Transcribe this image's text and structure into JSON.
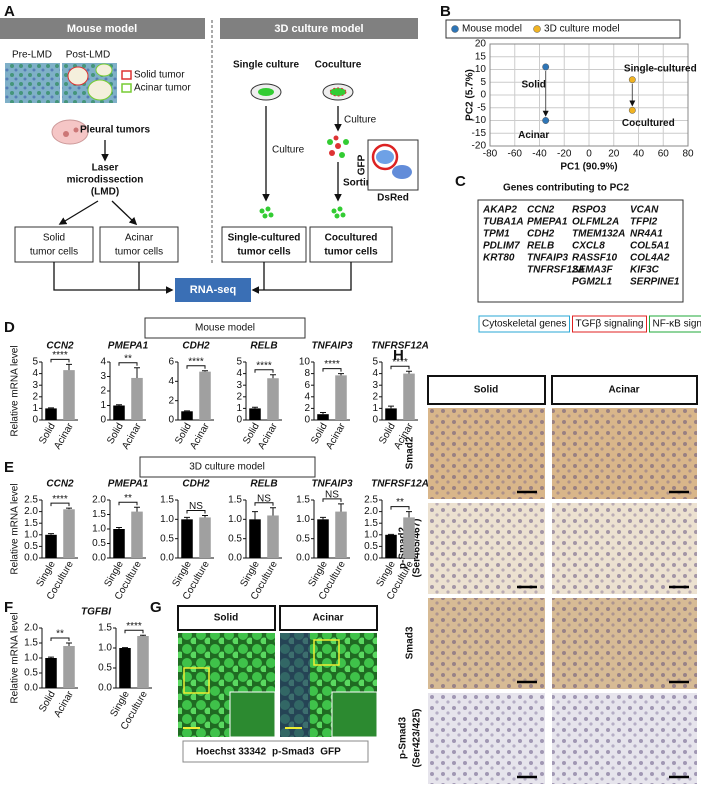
{
  "panel_labels": [
    "A",
    "B",
    "C",
    "D",
    "E",
    "F",
    "G",
    "H"
  ],
  "panel_a": {
    "mouse_header": "Mouse model",
    "culture_header": "3D culture model",
    "pre_lmd": "Pre-LMD",
    "post_lmd": "Post-LMD",
    "legend": [
      "Solid tumor",
      "Acinar tumor"
    ],
    "pleural": "Pleural tumors",
    "lmd": [
      "Laser",
      "microdissection",
      "(LMD)"
    ],
    "solid_cells": [
      "Solid",
      "tumor cells"
    ],
    "acinar_cells": [
      "Acinar",
      "tumor cells"
    ],
    "single_culture": "Single culture",
    "coculture": "Coculture",
    "culture_steps": [
      "Culture",
      "Culture"
    ],
    "sorting": "Sorting",
    "gfp": "GFP",
    "dsred": "DsRed",
    "single_cells": [
      "Single-cultured",
      "tumor cells"
    ],
    "cocultured_cells": [
      "Cocultured",
      "tumor cells"
    ],
    "rna_seq": "RNA-seq"
  },
  "panel_c": {
    "title": "Genes contributing to PC2",
    "columns": [
      [
        {
          "gene": "AKAP2",
          "color": "#2aa7d6"
        },
        {
          "gene": "TUBA1A",
          "color": "#2aa7d6"
        },
        {
          "gene": "TPM1",
          "color": "#2aa7d6"
        },
        {
          "gene": "PDLIM7",
          "color": "#2aa7d6"
        },
        {
          "gene": "KRT80",
          "color": "#2aa7d6"
        }
      ],
      [
        {
          "gene": "CCN2",
          "color": "#e02020"
        },
        {
          "gene": "PMEPA1",
          "color": "#e02020"
        },
        {
          "gene": "CDH2",
          "color": "#e02020"
        },
        {
          "gene": "RELB",
          "color": "#1fa83a"
        },
        {
          "gene": "TNFAIP3",
          "color": "#1fa83a"
        },
        {
          "gene": "TNFRSF12A",
          "color": "#1fa83a"
        }
      ],
      [
        {
          "gene": "RSPO3",
          "color": "#222222"
        },
        {
          "gene": "OLFML2A",
          "color": "#222222"
        },
        {
          "gene": "TMEM132A",
          "color": "#222222"
        },
        {
          "gene": "CXCL8",
          "color": "#222222"
        },
        {
          "gene": "RASSF10",
          "color": "#222222"
        },
        {
          "gene": "SEMA3F",
          "color": "#222222"
        },
        {
          "gene": "PGM2L1",
          "color": "#222222"
        }
      ],
      [
        {
          "gene": "VCAN",
          "color": "#222222"
        },
        {
          "gene": "TFPI2",
          "color": "#222222"
        },
        {
          "gene": "NR4A1",
          "color": "#222222"
        },
        {
          "gene": "COL5A1",
          "color": "#222222"
        },
        {
          "gene": "COL4A2",
          "color": "#222222"
        },
        {
          "gene": "KIF3C",
          "color": "#222222"
        },
        {
          "gene": "SERPINE1",
          "color": "#222222"
        }
      ]
    ],
    "legend": [
      {
        "text": "Cytoskeletal genes",
        "color": "#2aa7d6"
      },
      {
        "text": "TGFβ signaling",
        "color": "#e02020"
      },
      {
        "text": "NF-κB signaling",
        "color": "#1fa83a"
      }
    ]
  },
  "panel_d": {
    "header": "Mouse model"
  },
  "panel_e": {
    "header": "3D culture model"
  },
  "panel_g": {
    "headers": [
      "Solid",
      "Acinar"
    ],
    "stain_legend": [
      {
        "text": "Hoechst 33342",
        "color": "#3b4fa8"
      },
      {
        "text": "p-Smad3",
        "color": "#e0192b"
      },
      {
        "text": "GFP",
        "color": "#2ca02c"
      }
    ]
  },
  "panel_h": {
    "headers": [
      "Solid",
      "Acinar"
    ],
    "rows": [
      [
        "Smad2"
      ],
      [
        "p-Smad2",
        "(Ser465/467)"
      ],
      [
        "Smad3"
      ],
      [
        "p-Smad3",
        "(Ser423/425)"
      ]
    ]
  },
  "chart_data": [
    {
      "type": "scatter",
      "xlabel": "PC1 (90.9%)",
      "ylabel": "PC2 (5.7%)",
      "xlim": [
        -80,
        80
      ],
      "xticks": [
        -80,
        -60,
        -40,
        -20,
        0,
        20,
        40,
        60,
        80
      ],
      "ylim": [
        -20,
        20
      ],
      "yticks": [
        -20,
        -15,
        -10,
        -5,
        0,
        5,
        10,
        15,
        20
      ],
      "grid": true,
      "series": [
        {
          "name": "Mouse model",
          "color": "#2e75b6",
          "x": [
            -35,
            -35
          ],
          "values": [
            11,
            -10
          ],
          "point_labels": [
            "Solid",
            "Acinar"
          ]
        },
        {
          "name": "3D culture model",
          "color": "#f0b323",
          "x": [
            35,
            35
          ],
          "values": [
            6,
            -6
          ],
          "point_labels": [
            "Single-cultured",
            "Cocultured"
          ]
        }
      ]
    },
    {
      "type": "bar",
      "title": "CCN2",
      "ylabel": "Relative mRNA level",
      "categories": [
        "Solid",
        "Acinar"
      ],
      "values": [
        1,
        4.3
      ],
      "errors": [
        0.05,
        0.5
      ],
      "colors": [
        "#000000",
        "#a0a0a0"
      ],
      "ylim": [
        0,
        5
      ],
      "yticks": [
        0,
        1,
        2,
        3,
        4,
        5
      ],
      "significance": "****"
    },
    {
      "type": "bar",
      "title": "PMEPA1",
      "categories": [
        "Solid",
        "Acinar"
      ],
      "values": [
        1,
        2.9
      ],
      "errors": [
        0.05,
        0.7
      ],
      "colors": [
        "#000000",
        "#a0a0a0"
      ],
      "ylim": [
        0,
        4
      ],
      "yticks": [
        0,
        1,
        2,
        3,
        4
      ],
      "significance": "**"
    },
    {
      "type": "bar",
      "title": "CDH2",
      "categories": [
        "Solid",
        "Acinar"
      ],
      "values": [
        0.9,
        5
      ],
      "errors": [
        0.05,
        0.1
      ],
      "colors": [
        "#000000",
        "#a0a0a0"
      ],
      "ylim": [
        0,
        6
      ],
      "yticks": [
        0,
        2,
        4,
        6
      ],
      "significance": "****"
    },
    {
      "type": "bar",
      "title": "RELB",
      "categories": [
        "Solid",
        "Acinar"
      ],
      "values": [
        1,
        3.6
      ],
      "errors": [
        0.1,
        0.3
      ],
      "colors": [
        "#000000",
        "#a0a0a0"
      ],
      "ylim": [
        0,
        5
      ],
      "yticks": [
        0,
        1,
        2,
        3,
        4,
        5
      ],
      "significance": "****"
    },
    {
      "type": "bar",
      "title": "TNFAIP3",
      "categories": [
        "Solid",
        "Acinar"
      ],
      "values": [
        1,
        7.7
      ],
      "errors": [
        0.3,
        0.3
      ],
      "colors": [
        "#000000",
        "#a0a0a0"
      ],
      "ylim": [
        0,
        10
      ],
      "yticks": [
        0,
        2,
        4,
        6,
        8,
        10
      ],
      "significance": "****"
    },
    {
      "type": "bar",
      "title": "TNFRSF12A",
      "categories": [
        "Solid",
        "Acinar"
      ],
      "values": [
        1,
        4
      ],
      "errors": [
        0.2,
        0.2
      ],
      "colors": [
        "#000000",
        "#a0a0a0"
      ],
      "ylim": [
        0,
        5
      ],
      "yticks": [
        0,
        1,
        2,
        3,
        4,
        5
      ],
      "significance": "****"
    },
    {
      "type": "bar",
      "title": "CCN2",
      "ylabel": "Relative mRNA level",
      "categories": [
        "Single",
        "Coculture"
      ],
      "values": [
        1,
        2.1
      ],
      "errors": [
        0.05,
        0.05
      ],
      "colors": [
        "#000000",
        "#a0a0a0"
      ],
      "ylim": [
        0,
        2.5
      ],
      "yticks": [
        {
          "value": 0,
          "label": "0.0"
        },
        {
          "value": 0.5,
          "label": "0.5"
        },
        {
          "value": 1,
          "label": "1.0"
        },
        {
          "value": 1.5,
          "label": "1.5"
        },
        {
          "value": 2,
          "label": "2.0"
        },
        {
          "value": 2.5,
          "label": "2.5"
        }
      ],
      "significance": "****"
    },
    {
      "type": "bar",
      "title": "PMEPA1",
      "categories": [
        "Single",
        "Coculture"
      ],
      "values": [
        1,
        1.6
      ],
      "errors": [
        0.05,
        0.15
      ],
      "colors": [
        "#000000",
        "#a0a0a0"
      ],
      "ylim": [
        0,
        2
      ],
      "yticks": [
        {
          "value": 0,
          "label": "0.0"
        },
        {
          "value": 0.5,
          "label": "0.5"
        },
        {
          "value": 1,
          "label": "1.0"
        },
        {
          "value": 1.5,
          "label": "1.5"
        },
        {
          "value": 2,
          "label": "2.0"
        }
      ],
      "significance": "**"
    },
    {
      "type": "bar",
      "title": "CDH2",
      "categories": [
        "Single",
        "Coculture"
      ],
      "values": [
        1,
        1.05
      ],
      "errors": [
        0.05,
        0.05
      ],
      "colors": [
        "#000000",
        "#a0a0a0"
      ],
      "ylim": [
        0,
        1.5
      ],
      "yticks": [
        {
          "value": 0,
          "label": "0.0"
        },
        {
          "value": 0.5,
          "label": "0.5"
        },
        {
          "value": 1,
          "label": "1.0"
        },
        {
          "value": 1.5,
          "label": "1.5"
        }
      ],
      "significance": "NS"
    },
    {
      "type": "bar",
      "title": "RELB",
      "categories": [
        "Single",
        "Coculture"
      ],
      "values": [
        1,
        1.1
      ],
      "errors": [
        0.2,
        0.2
      ],
      "colors": [
        "#000000",
        "#a0a0a0"
      ],
      "ylim": [
        0,
        1.5
      ],
      "yticks": [
        {
          "value": 0,
          "label": "0.0"
        },
        {
          "value": 0.5,
          "label": "0.5"
        },
        {
          "value": 1,
          "label": "1.0"
        },
        {
          "value": 1.5,
          "label": "1.5"
        }
      ],
      "significance": "NS"
    },
    {
      "type": "bar",
      "title": "TNFAIP3",
      "categories": [
        "Single",
        "Coculture"
      ],
      "values": [
        1,
        1.2
      ],
      "errors": [
        0.05,
        0.2
      ],
      "colors": [
        "#000000",
        "#a0a0a0"
      ],
      "ylim": [
        0,
        1.5
      ],
      "yticks": [
        {
          "value": 0,
          "label": "0.0"
        },
        {
          "value": 0.5,
          "label": "0.5"
        },
        {
          "value": 1,
          "label": "1.0"
        },
        {
          "value": 1.5,
          "label": "1.5"
        }
      ],
      "significance": "NS"
    },
    {
      "type": "bar",
      "title": "TNFRSF12A",
      "categories": [
        "Single",
        "Coculture"
      ],
      "values": [
        1,
        1.75
      ],
      "errors": [
        0.02,
        0.25
      ],
      "colors": [
        "#000000",
        "#a0a0a0"
      ],
      "ylim": [
        0,
        2.5
      ],
      "yticks": [
        {
          "value": 0,
          "label": "0.0"
        },
        {
          "value": 0.5,
          "label": "0.5"
        },
        {
          "value": 1,
          "label": "1.0"
        },
        {
          "value": 1.5,
          "label": "1.5"
        },
        {
          "value": 2,
          "label": "2.0"
        },
        {
          "value": 2.5,
          "label": "2.5"
        }
      ],
      "significance": "**"
    },
    {
      "type": "bar",
      "title": "TGFBI",
      "ylabel": "Relative mRNA level",
      "categories": [
        "Solid",
        "Acinar"
      ],
      "values": [
        1,
        1.4
      ],
      "errors": [
        0.03,
        0.1
      ],
      "colors": [
        "#000000",
        "#a0a0a0"
      ],
      "ylim": [
        0,
        2
      ],
      "yticks": [
        {
          "value": 0,
          "label": "0.0"
        },
        {
          "value": 0.5,
          "label": "0.5"
        },
        {
          "value": 1,
          "label": "1.0"
        },
        {
          "value": 1.5,
          "label": "1.5"
        },
        {
          "value": 2,
          "label": "2.0"
        }
      ],
      "significance": "**"
    },
    {
      "type": "bar",
      "categories": [
        "Single",
        "Coculture"
      ],
      "values": [
        1,
        1.3
      ],
      "errors": [
        0.01,
        0.02
      ],
      "colors": [
        "#000000",
        "#a0a0a0"
      ],
      "ylim": [
        0,
        1.5
      ],
      "yticks": [
        {
          "value": 0,
          "label": "0.0"
        },
        {
          "value": 0.5,
          "label": "0.5"
        },
        {
          "value": 1,
          "label": "1.0"
        },
        {
          "value": 1.5,
          "label": "1.5"
        }
      ],
      "significance": "****"
    }
  ]
}
